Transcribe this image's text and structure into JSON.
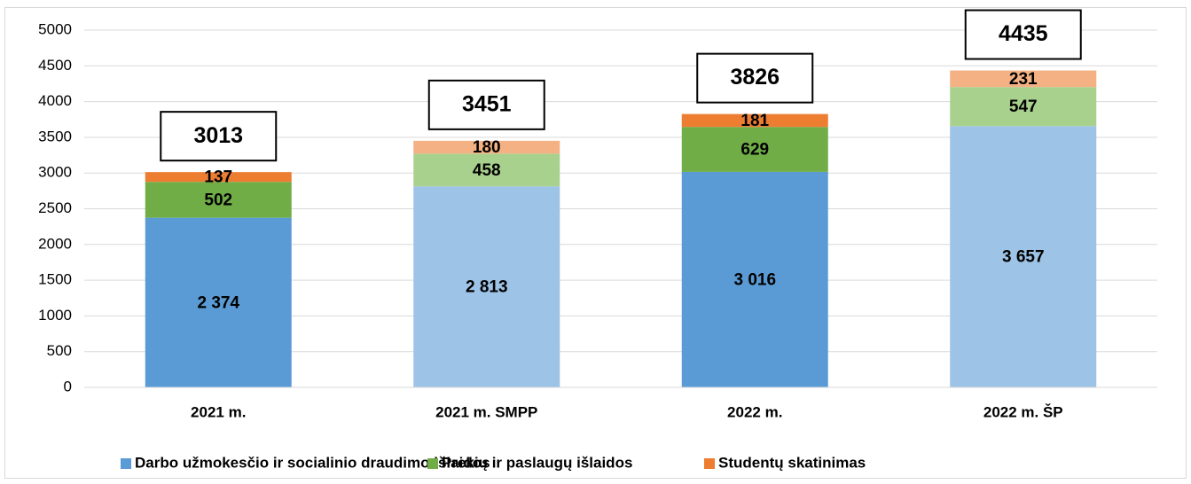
{
  "chart_data": {
    "type": "stacked_bar",
    "categories": [
      "2021 m.",
      "2021 m. SMPP",
      "2022 m.",
      "2022 m. ŠP"
    ],
    "series": [
      {
        "name": "Darbo užmokesčio ir socialinio draudimo išlaidos",
        "color": "#5b9bd5",
        "colors": [
          "#5b9bd5",
          "#9dc3e6",
          "#5b9bd5",
          "#9dc3e6"
        ],
        "values": [
          2374,
          2813,
          3016,
          3657
        ],
        "value_labels": [
          "2 374",
          "2 813",
          "3 016",
          "3 657"
        ]
      },
      {
        "name": "Prekių ir paslaugų išlaidos",
        "color": "#70ad47",
        "colors": [
          "#70ad47",
          "#a9d18e",
          "#70ad47",
          "#a9d18e"
        ],
        "values": [
          502,
          458,
          629,
          547
        ]
      },
      {
        "name": "Studentų skatinimas",
        "color": "#ed7d31",
        "colors": [
          "#ed7d31",
          "#f4b183",
          "#ed7d31",
          "#f4b183"
        ],
        "values": [
          137,
          180,
          181,
          231
        ]
      }
    ],
    "totals": [
      3013,
      3451,
      3826,
      4435
    ],
    "ylim": [
      0,
      5000
    ],
    "yticks": [
      0,
      500,
      1000,
      1500,
      2000,
      2500,
      3000,
      3500,
      4000,
      4500,
      5000
    ],
    "grid": true
  }
}
